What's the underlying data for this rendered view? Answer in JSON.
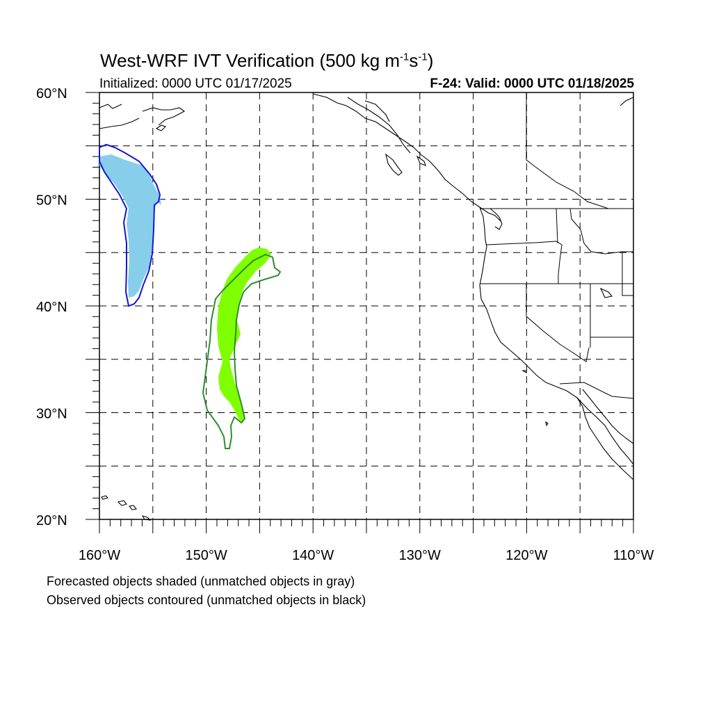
{
  "title": {
    "main": "West-WRF IVT Verification (500 kg m",
    "exp1": "-1",
    "mid": "s",
    "exp2": "-1",
    "close": ")"
  },
  "subtitle": {
    "left": "Initialized: 0000 UTC 01/17/2025",
    "right": "F-24: Valid: 0000 UTC 01/18/2025"
  },
  "map": {
    "lon_range": [
      -160,
      -110
    ],
    "lat_range": [
      20,
      60
    ],
    "lon_labels": [
      "160°W",
      "150°W",
      "140°W",
      "130°W",
      "120°W",
      "110°W"
    ],
    "lat_labels": [
      "20°N",
      "30°N",
      "40°N",
      "50°N",
      "60°N"
    ],
    "dashed_grid_step_deg": 5,
    "colors": {
      "object1_fill": "#87CEEB",
      "object1_outline": "#1515D0",
      "object2_fill": "#80FF00",
      "object2_outline": "#2E8B2E",
      "coast": "#000000"
    }
  },
  "footnote": {
    "line1": "Forecasted objects shaded (unmatched objects in gray)",
    "line2": "Observed objects contoured (unmatched objects in black)"
  }
}
